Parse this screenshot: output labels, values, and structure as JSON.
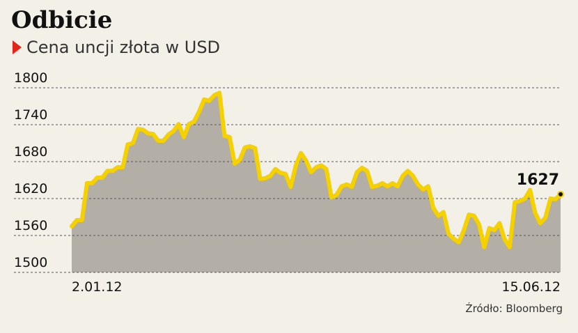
{
  "chart_data": {
    "type": "area-line",
    "title": "Odbicie",
    "subtitle": "Cena uncji złota w USD",
    "source": "Źródło: Bloomberg",
    "categories": [
      "2.01.12",
      null,
      null,
      null,
      null,
      null,
      null,
      null,
      null,
      null,
      null,
      null,
      null,
      null,
      null,
      null,
      null,
      null,
      null,
      null,
      null,
      null,
      null,
      null,
      null,
      null,
      null,
      null,
      null,
      null,
      null,
      null,
      null,
      null,
      null,
      null,
      null,
      null,
      null,
      null,
      null,
      null,
      null,
      null,
      null,
      null,
      null,
      null,
      null,
      null,
      null,
      null,
      null,
      null,
      null,
      null,
      null,
      null,
      null,
      null,
      null,
      null,
      null,
      null,
      null,
      null,
      null,
      null,
      null,
      null,
      null,
      null,
      null,
      null,
      null,
      null,
      null,
      null,
      null,
      null,
      null,
      null,
      null,
      null,
      null,
      null,
      null,
      null,
      null,
      null,
      null,
      null,
      null,
      null,
      null,
      null,
      "15.06.12"
    ],
    "series": [
      {
        "name": "Cena uncji złota w USD",
        "color": "#f6d100",
        "fill": "#b3afa6",
        "values": [
          1575,
          1585,
          1585,
          1645,
          1645,
          1654,
          1654,
          1665,
          1665,
          1671,
          1671,
          1708,
          1710,
          1733,
          1732,
          1726,
          1725,
          1714,
          1714,
          1724,
          1730,
          1741,
          1720,
          1741,
          1745,
          1761,
          1781,
          1779,
          1788,
          1792,
          1722,
          1720,
          1677,
          1683,
          1703,
          1705,
          1702,
          1652,
          1653,
          1657,
          1668,
          1662,
          1660,
          1639,
          1674,
          1694,
          1682,
          1663,
          1671,
          1674,
          1668,
          1622,
          1626,
          1640,
          1643,
          1639,
          1663,
          1670,
          1665,
          1639,
          1641,
          1645,
          1640,
          1645,
          1640,
          1657,
          1665,
          1657,
          1643,
          1635,
          1640,
          1605,
          1592,
          1598,
          1563,
          1555,
          1549,
          1569,
          1594,
          1592,
          1578,
          1541,
          1572,
          1569,
          1580,
          1554,
          1541,
          1614,
          1616,
          1620,
          1634,
          1597,
          1580,
          1589,
          1620,
          1619,
          1627
        ]
      }
    ],
    "ylim": [
      1500,
      1800
    ],
    "yticks": [
      1500,
      1560,
      1620,
      1680,
      1740,
      1800
    ],
    "grid": true
  }
}
